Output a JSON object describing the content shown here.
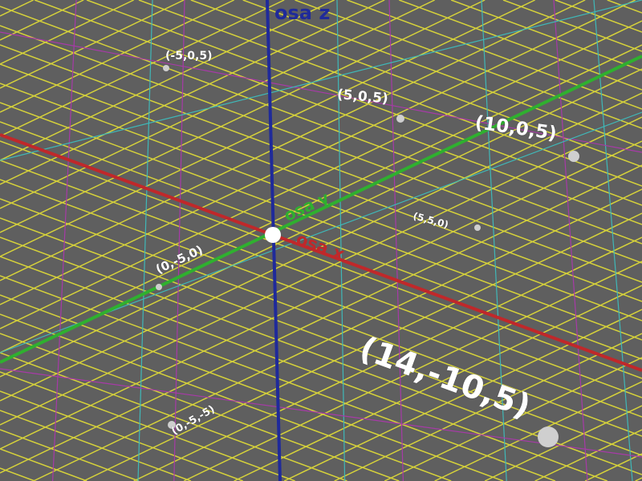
{
  "colors": {
    "background": "#5f5f5f",
    "grid": "#d6d23a",
    "grid_cyan": "#3fb8b8",
    "grid_magenta": "#a83aa8",
    "axis_x": "#c0282a",
    "axis_y": "#2fb02f",
    "axis_z": "#1f2a9a",
    "point": "#cfcfcf"
  },
  "axes": {
    "x_label": "osa x",
    "y_label": "osa y",
    "z_label": "osa z"
  },
  "points": [
    {
      "label": "(-5,0,5)"
    },
    {
      "label": "(5,0,5)"
    },
    {
      "label": "(10,0,5)"
    },
    {
      "label": "(5,5,0)"
    },
    {
      "label": "(0,-5,0)"
    },
    {
      "label": "(0,-5,-5)"
    },
    {
      "label": "(14,-10,5)"
    }
  ]
}
